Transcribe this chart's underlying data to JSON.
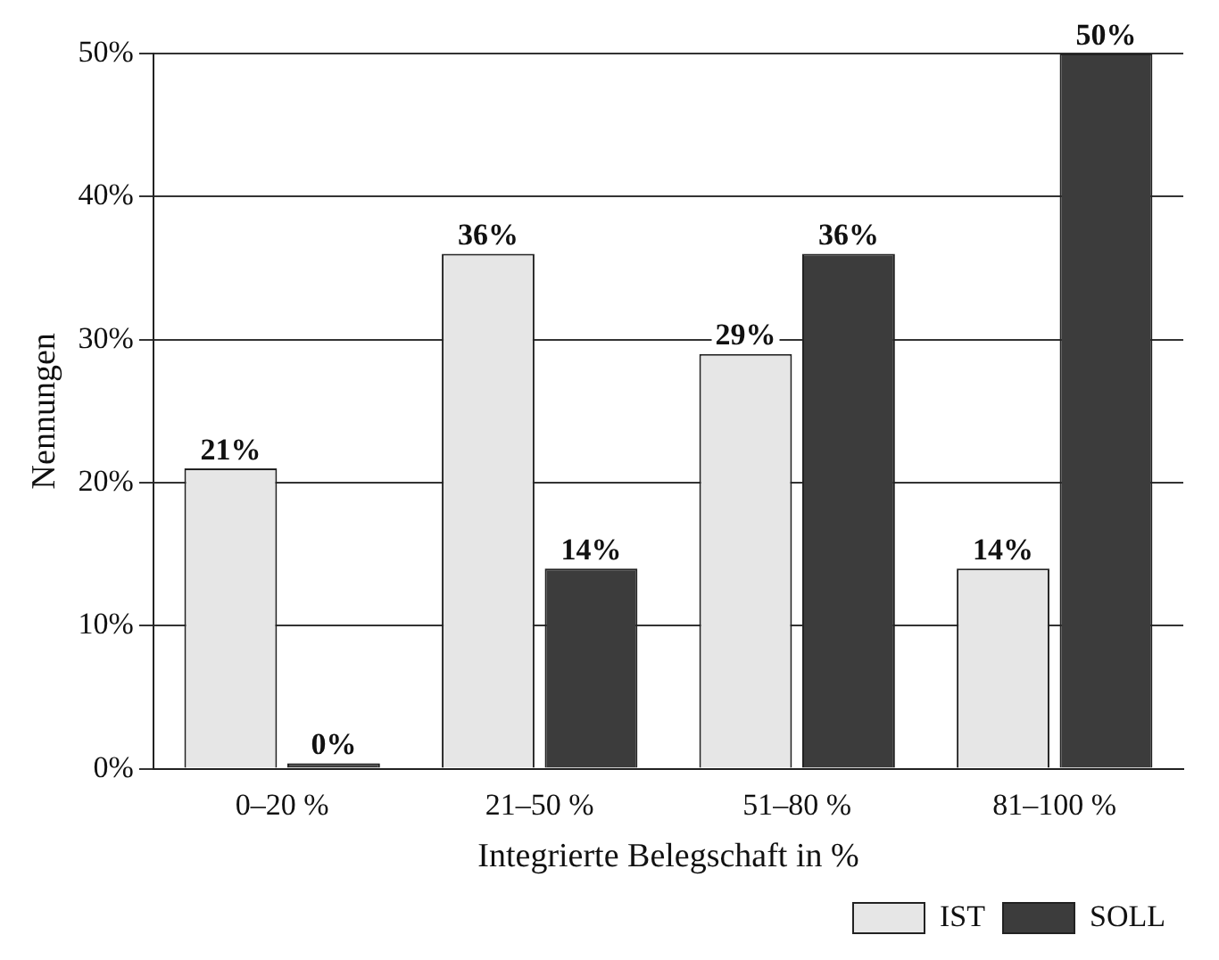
{
  "chart_data": {
    "type": "bar",
    "xlabel": "Integrierte Belegschaft in %",
    "ylabel": "Nennungen",
    "categories": [
      "0–20 %",
      "21–50 %",
      "51–80 %",
      "81–100 %"
    ],
    "series": [
      {
        "name": "IST",
        "color": "#e6e6e6",
        "values": [
          21,
          36,
          29,
          14
        ],
        "value_labels": [
          "21%",
          "36%",
          "29%",
          "14%"
        ]
      },
      {
        "name": "SOLL",
        "color": "#3c3c3c",
        "values": [
          0,
          14,
          36,
          50
        ],
        "value_labels": [
          "0%",
          "14%",
          "36%",
          "50%"
        ]
      }
    ],
    "ylim": [
      0,
      50
    ],
    "yticks": [
      {
        "value": 0,
        "label": "0%"
      },
      {
        "value": 10,
        "label": "10%"
      },
      {
        "value": 20,
        "label": "20%"
      },
      {
        "value": 30,
        "label": "30%"
      },
      {
        "value": 40,
        "label": "40%"
      },
      {
        "value": 50,
        "label": "50%"
      }
    ],
    "grid": "y",
    "legend": "bottom right"
  }
}
